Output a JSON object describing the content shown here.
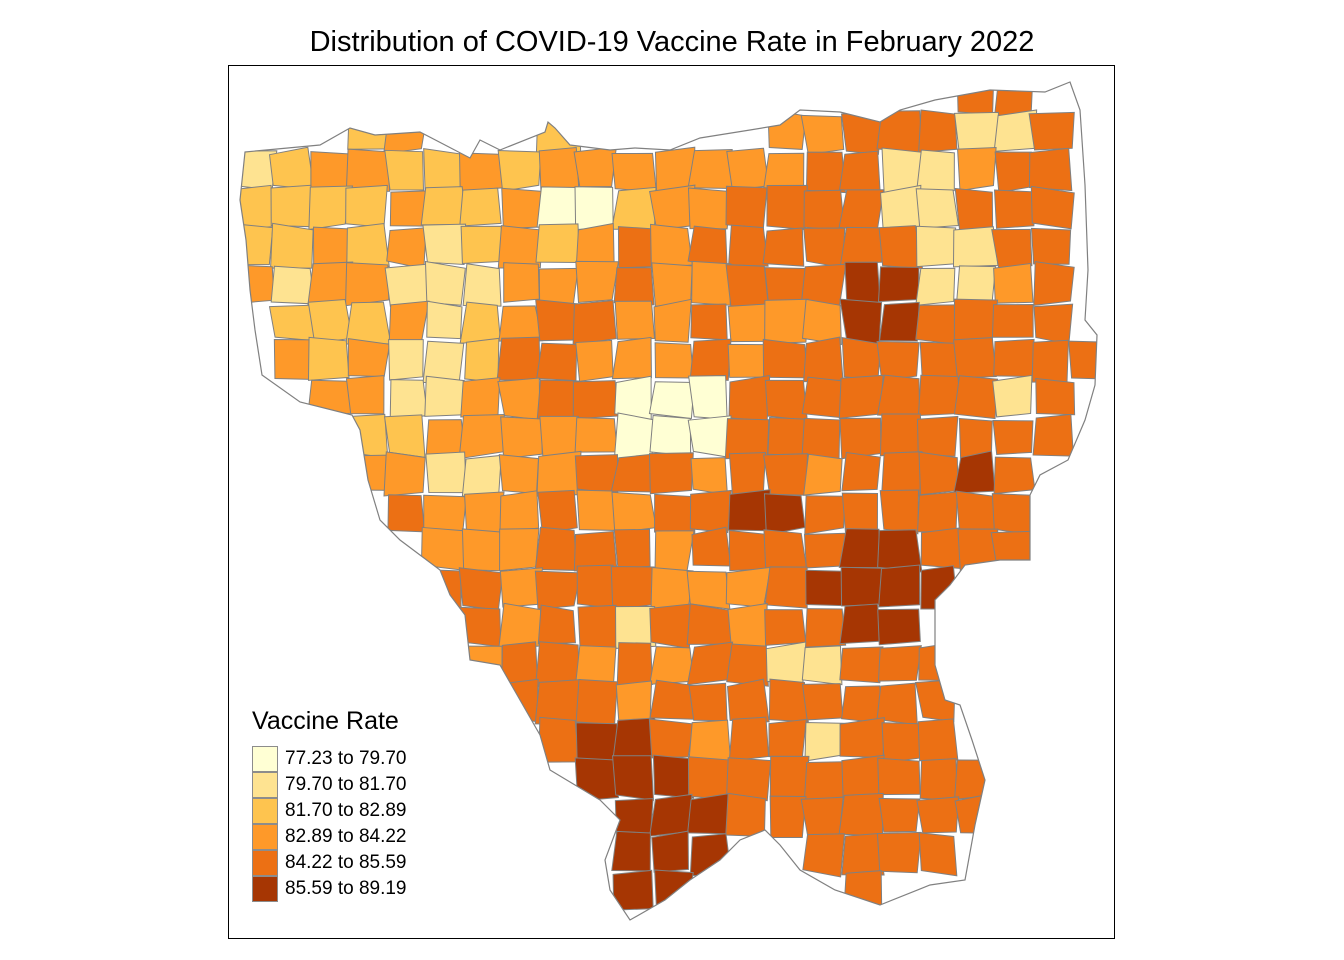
{
  "title": "Distribution of COVID-19 Vaccine Rate in February 2022",
  "legend": {
    "title": "Vaccine Rate",
    "classes": [
      {
        "label": "77.23 to 79.70",
        "color": "#ffffd4"
      },
      {
        "label": "79.70 to 81.70",
        "color": "#fee391"
      },
      {
        "label": "81.70 to 82.89",
        "color": "#fec44f"
      },
      {
        "label": "82.89 to 84.22",
        "color": "#fe9929"
      },
      {
        "label": "84.22 to 85.59",
        "color": "#ec7014"
      },
      {
        "label": "85.59 to 89.19",
        "color": "#a63603"
      }
    ]
  },
  "style": {
    "border_color": "#808080"
  }
}
